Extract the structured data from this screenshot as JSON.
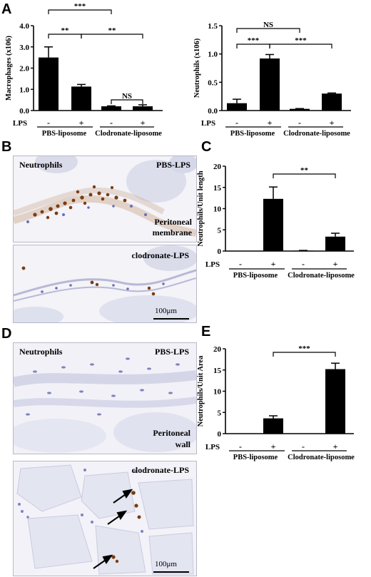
{
  "panels": {
    "A": "A",
    "B": "B",
    "C": "C",
    "D": "D",
    "E": "E"
  },
  "common": {
    "lps_label": "LPS",
    "minus": "-",
    "plus": "+",
    "group1": "PBS-liposome",
    "group2": "Clodronate-liposome"
  },
  "chart_data": [
    {
      "id": "A-left",
      "type": "bar",
      "ylabel": "Macrophages (x106)",
      "ylim": [
        0,
        4.0
      ],
      "yticks": [
        "0.0",
        "1.0",
        "2.0",
        "3.0",
        "4.0"
      ],
      "categories": [
        "PBS-liposome LPS-",
        "PBS-liposome LPS+",
        "Clodronate-liposome LPS-",
        "Clodronate-liposome LPS+"
      ],
      "values": [
        2.5,
        1.13,
        0.2,
        0.2
      ],
      "errors": [
        0.5,
        0.1,
        0.02,
        0.07
      ],
      "significance": [
        {
          "from": 0,
          "to": 2,
          "label": "***"
        },
        {
          "from": 0,
          "to": 1,
          "label": "**"
        },
        {
          "from": 1,
          "to": 3,
          "label": "**"
        },
        {
          "from": 2,
          "to": 3,
          "label": "NS"
        }
      ]
    },
    {
      "id": "A-right",
      "type": "bar",
      "ylabel": "Neutrophils (x106)",
      "ylim": [
        0,
        1.5
      ],
      "yticks": [
        "0.0",
        "0.5",
        "1.0",
        "1.5"
      ],
      "categories": [
        "PBS-liposome LPS-",
        "PBS-liposome LPS+",
        "Clodronate-liposome LPS-",
        "Clodronate-liposome LPS+"
      ],
      "values": [
        0.13,
        0.92,
        0.03,
        0.3
      ],
      "errors": [
        0.07,
        0.07,
        0.005,
        0.01
      ],
      "significance": [
        {
          "from": 0,
          "to": 2,
          "label": "NS"
        },
        {
          "from": 0,
          "to": 1,
          "label": "***"
        },
        {
          "from": 1,
          "to": 3,
          "label": "***"
        }
      ]
    },
    {
      "id": "C",
      "type": "bar",
      "ylabel": "Neutrophils/Unit length",
      "ylim": [
        0,
        20
      ],
      "yticks": [
        "0",
        "5",
        "10",
        "15",
        "20"
      ],
      "categories": [
        "PBS-liposome LPS-",
        "PBS-liposome LPS+",
        "Clodronate-liposome LPS-",
        "Clodronate-liposome LPS+"
      ],
      "values": [
        0,
        12.3,
        0.1,
        3.4
      ],
      "errors": [
        0,
        2.8,
        0.05,
        0.8
      ],
      "significance": [
        {
          "from": 1,
          "to": 3,
          "label": "**"
        }
      ]
    },
    {
      "id": "E",
      "type": "bar",
      "ylabel": "Neutrophils/Unit Area",
      "ylim": [
        0,
        20
      ],
      "yticks": [
        "0",
        "5",
        "10",
        "15",
        "20"
      ],
      "categories": [
        "PBS-liposome LPS-",
        "PBS-liposome LPS+",
        "Clodronate-liposome LPS-",
        "Clodronate-liposome LPS+"
      ],
      "values": [
        0,
        3.6,
        0,
        15.2
      ],
      "errors": [
        0,
        0.6,
        0,
        1.4
      ],
      "significance": [
        {
          "from": 1,
          "to": 3,
          "label": "***"
        }
      ]
    }
  ],
  "micrographs": {
    "B_top": {
      "left_label": "Neutrophils",
      "right_label": "PBS-LPS",
      "bottom_label_1": "Peritoneal",
      "bottom_label_2": "membrane"
    },
    "B_bottom": {
      "right_label": "clodronate-LPS",
      "scale": "100μm"
    },
    "D_top": {
      "left_label": "Neutrophils",
      "right_label": "PBS-LPS",
      "bottom_label_1": "Peritoneal",
      "bottom_label_2": "wall"
    },
    "D_bottom": {
      "right_label": "clodronate-LPS",
      "scale": "100μm"
    }
  },
  "colors": {
    "bar": "#000000",
    "tissue_bg": "#f2f2f7",
    "cell_blue": "#6a6fb8",
    "neutrophil_brown": "#7a3c10"
  }
}
